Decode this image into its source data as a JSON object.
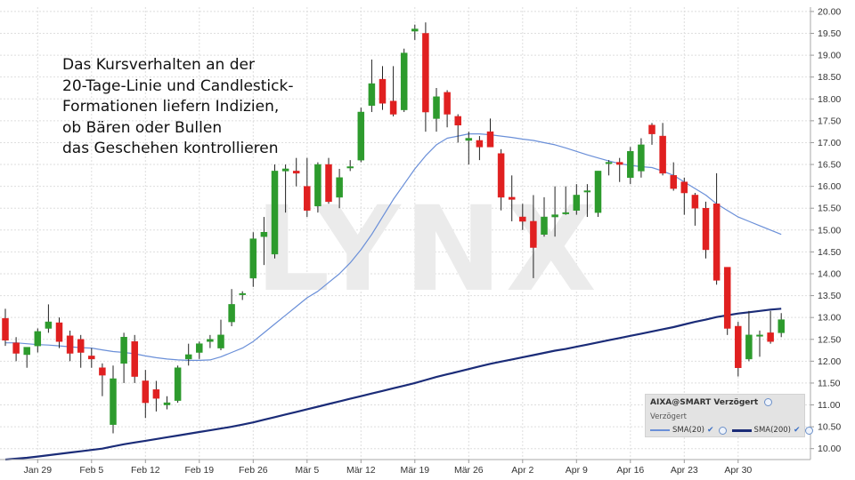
{
  "annotation": {
    "lines": [
      "Das Kursverhalten an der",
      "20-Tage-Linie und Candlestick-",
      "Formationen liefern Indizien,",
      "ob Bären oder Bullen",
      "das Geschehen kontrollieren"
    ]
  },
  "watermark": "LYNX",
  "legend": {
    "title": "AIXA@SMART Verzögert",
    "subtitle": "Verzögert",
    "items": [
      {
        "label": "SMA(20)",
        "color": "#6a8fd8"
      },
      {
        "label": "SMA(200)",
        "color": "#1b2c78"
      }
    ]
  },
  "chart_data": {
    "type": "candlestick",
    "y_axis": {
      "position": "right",
      "min": 9.75,
      "max": 20.1,
      "ticks": [
        "20.00",
        "19.50",
        "19.00",
        "18.50",
        "18.00",
        "17.50",
        "17.00",
        "16.50",
        "16.00",
        "15.50",
        "15.00",
        "14.50",
        "14.00",
        "13.50",
        "13.00",
        "12.50",
        "12.00",
        "11.50",
        "11.00",
        "10.50",
        "10.00"
      ]
    },
    "x_axis": {
      "labels": [
        {
          "text": "Jan 29",
          "index": 3
        },
        {
          "text": "Feb 5",
          "index": 8
        },
        {
          "text": "Feb 12",
          "index": 13
        },
        {
          "text": "Feb 19",
          "index": 18
        },
        {
          "text": "Feb 26",
          "index": 23
        },
        {
          "text": "Mär 5",
          "index": 28
        },
        {
          "text": "Mär 12",
          "index": 33
        },
        {
          "text": "Mär 19",
          "index": 38
        },
        {
          "text": "Mär 26",
          "index": 43
        },
        {
          "text": "Apr 2",
          "index": 48
        },
        {
          "text": "Apr 9",
          "index": 53
        },
        {
          "text": "Apr 16",
          "index": 58
        },
        {
          "text": "Apr 23",
          "index": 63
        },
        {
          "text": "Apr 30",
          "index": 68
        }
      ]
    },
    "up_color": "#2d9b2d",
    "down_color": "#e02020",
    "grid": true,
    "candles": [
      {
        "o": 12.98,
        "h": 13.2,
        "l": 12.35,
        "c": 12.48
      },
      {
        "o": 12.42,
        "h": 12.55,
        "l": 12.0,
        "c": 12.18
      },
      {
        "o": 12.15,
        "h": 12.3,
        "l": 11.85,
        "c": 12.32
      },
      {
        "o": 12.35,
        "h": 12.75,
        "l": 12.2,
        "c": 12.68
      },
      {
        "o": 12.75,
        "h": 13.3,
        "l": 12.65,
        "c": 12.9
      },
      {
        "o": 12.88,
        "h": 13.0,
        "l": 12.3,
        "c": 12.45
      },
      {
        "o": 12.58,
        "h": 12.7,
        "l": 12.0,
        "c": 12.18
      },
      {
        "o": 12.5,
        "h": 12.6,
        "l": 11.85,
        "c": 12.2
      },
      {
        "o": 12.12,
        "h": 12.3,
        "l": 11.85,
        "c": 12.05
      },
      {
        "o": 11.85,
        "h": 11.95,
        "l": 11.2,
        "c": 11.68
      },
      {
        "o": 10.55,
        "h": 11.9,
        "l": 10.35,
        "c": 11.6
      },
      {
        "o": 11.95,
        "h": 12.65,
        "l": 11.5,
        "c": 12.55
      },
      {
        "o": 12.45,
        "h": 12.6,
        "l": 11.5,
        "c": 11.65
      },
      {
        "o": 11.55,
        "h": 11.8,
        "l": 10.7,
        "c": 11.05
      },
      {
        "o": 11.35,
        "h": 11.55,
        "l": 10.85,
        "c": 11.15
      },
      {
        "o": 11.0,
        "h": 11.2,
        "l": 10.9,
        "c": 11.05
      },
      {
        "o": 11.1,
        "h": 11.9,
        "l": 11.05,
        "c": 11.85
      },
      {
        "o": 12.05,
        "h": 12.4,
        "l": 11.9,
        "c": 12.15
      },
      {
        "o": 12.2,
        "h": 12.45,
        "l": 12.05,
        "c": 12.4
      },
      {
        "o": 12.45,
        "h": 12.6,
        "l": 12.3,
        "c": 12.5
      },
      {
        "o": 12.3,
        "h": 12.95,
        "l": 12.25,
        "c": 12.6
      },
      {
        "o": 12.9,
        "h": 13.65,
        "l": 12.8,
        "c": 13.3
      },
      {
        "o": 13.55,
        "h": 13.6,
        "l": 13.4,
        "c": 13.55
      },
      {
        "o": 13.9,
        "h": 14.95,
        "l": 13.7,
        "c": 14.8
      },
      {
        "o": 14.85,
        "h": 15.3,
        "l": 14.2,
        "c": 14.95
      },
      {
        "o": 14.45,
        "h": 16.5,
        "l": 14.35,
        "c": 16.35
      },
      {
        "o": 16.35,
        "h": 16.5,
        "l": 15.4,
        "c": 16.4
      },
      {
        "o": 16.35,
        "h": 16.65,
        "l": 16.0,
        "c": 16.3
      },
      {
        "o": 16.0,
        "h": 16.65,
        "l": 15.3,
        "c": 15.45
      },
      {
        "o": 15.55,
        "h": 16.55,
        "l": 15.4,
        "c": 16.5
      },
      {
        "o": 16.5,
        "h": 16.65,
        "l": 15.6,
        "c": 15.65
      },
      {
        "o": 15.75,
        "h": 16.4,
        "l": 15.5,
        "c": 16.2
      },
      {
        "o": 16.45,
        "h": 16.6,
        "l": 16.35,
        "c": 16.45
      },
      {
        "o": 16.6,
        "h": 17.8,
        "l": 16.55,
        "c": 17.7
      },
      {
        "o": 17.85,
        "h": 18.9,
        "l": 17.7,
        "c": 18.35
      },
      {
        "o": 18.45,
        "h": 18.75,
        "l": 17.75,
        "c": 17.9
      },
      {
        "o": 17.95,
        "h": 18.75,
        "l": 17.6,
        "c": 17.65
      },
      {
        "o": 17.75,
        "h": 19.15,
        "l": 17.7,
        "c": 19.05
      },
      {
        "o": 19.55,
        "h": 19.7,
        "l": 19.35,
        "c": 19.6
      },
      {
        "o": 19.5,
        "h": 19.75,
        "l": 17.25,
        "c": 17.7
      },
      {
        "o": 17.55,
        "h": 18.25,
        "l": 17.25,
        "c": 18.05
      },
      {
        "o": 18.15,
        "h": 18.2,
        "l": 17.35,
        "c": 17.65
      },
      {
        "o": 17.6,
        "h": 17.65,
        "l": 17.0,
        "c": 17.4
      },
      {
        "o": 17.05,
        "h": 17.25,
        "l": 16.5,
        "c": 17.1
      },
      {
        "o": 17.05,
        "h": 17.15,
        "l": 16.6,
        "c": 16.9
      },
      {
        "o": 17.25,
        "h": 17.55,
        "l": 16.9,
        "c": 16.9
      },
      {
        "o": 16.75,
        "h": 16.85,
        "l": 15.45,
        "c": 15.75
      },
      {
        "o": 15.75,
        "h": 16.25,
        "l": 15.2,
        "c": 15.7
      },
      {
        "o": 15.3,
        "h": 15.6,
        "l": 15.0,
        "c": 15.2
      },
      {
        "o": 15.2,
        "h": 15.8,
        "l": 13.9,
        "c": 14.6
      },
      {
        "o": 14.9,
        "h": 15.75,
        "l": 14.85,
        "c": 15.3
      },
      {
        "o": 15.3,
        "h": 16.0,
        "l": 14.85,
        "c": 15.35
      },
      {
        "o": 15.4,
        "h": 16.0,
        "l": 15.35,
        "c": 15.4
      },
      {
        "o": 15.45,
        "h": 16.05,
        "l": 15.35,
        "c": 15.8
      },
      {
        "o": 15.9,
        "h": 16.05,
        "l": 15.3,
        "c": 15.9
      },
      {
        "o": 15.4,
        "h": 16.35,
        "l": 15.3,
        "c": 16.35
      },
      {
        "o": 16.55,
        "h": 16.6,
        "l": 16.25,
        "c": 16.55
      },
      {
        "o": 16.55,
        "h": 16.65,
        "l": 16.1,
        "c": 16.5
      },
      {
        "o": 16.2,
        "h": 16.9,
        "l": 16.05,
        "c": 16.8
      },
      {
        "o": 16.35,
        "h": 17.1,
        "l": 16.2,
        "c": 16.95
      },
      {
        "o": 17.4,
        "h": 17.45,
        "l": 16.95,
        "c": 17.2
      },
      {
        "o": 17.15,
        "h": 17.45,
        "l": 16.25,
        "c": 16.3
      },
      {
        "o": 16.25,
        "h": 16.55,
        "l": 15.9,
        "c": 15.95
      },
      {
        "o": 16.1,
        "h": 16.2,
        "l": 15.35,
        "c": 15.85
      },
      {
        "o": 15.8,
        "h": 15.85,
        "l": 15.1,
        "c": 15.5
      },
      {
        "o": 15.5,
        "h": 15.65,
        "l": 14.35,
        "c": 14.55
      },
      {
        "o": 15.6,
        "h": 16.3,
        "l": 13.75,
        "c": 13.85
      },
      {
        "o": 14.15,
        "h": 14.15,
        "l": 12.6,
        "c": 12.75
      },
      {
        "o": 12.8,
        "h": 12.9,
        "l": 11.65,
        "c": 11.85
      },
      {
        "o": 12.05,
        "h": 13.15,
        "l": 12.0,
        "c": 12.6
      },
      {
        "o": 12.6,
        "h": 12.7,
        "l": 12.1,
        "c": 12.6
      },
      {
        "o": 12.65,
        "h": 13.15,
        "l": 12.4,
        "c": 12.45
      },
      {
        "o": 12.65,
        "h": 13.1,
        "l": 12.55,
        "c": 12.95
      }
    ],
    "sma20": [
      12.42,
      12.42,
      12.4,
      12.38,
      12.37,
      12.35,
      12.33,
      12.31,
      12.3,
      12.26,
      12.22,
      12.2,
      12.17,
      12.12,
      12.08,
      12.05,
      12.03,
      12.02,
      12.02,
      12.03,
      12.1,
      12.2,
      12.3,
      12.45,
      12.65,
      12.85,
      13.05,
      13.25,
      13.45,
      13.6,
      13.8,
      14.0,
      14.25,
      14.55,
      14.9,
      15.3,
      15.7,
      16.05,
      16.4,
      16.7,
      16.95,
      17.1,
      17.15,
      17.2,
      17.2,
      17.18,
      17.15,
      17.12,
      17.08,
      17.05,
      17.0,
      16.95,
      16.88,
      16.8,
      16.72,
      16.65,
      16.58,
      16.52,
      16.48,
      16.45,
      16.43,
      16.35,
      16.25,
      16.1,
      15.95,
      15.8,
      15.6,
      15.45,
      15.3,
      15.2,
      15.1,
      15.0,
      14.9
    ],
    "sma200": [
      9.75,
      9.77,
      9.79,
      9.82,
      9.85,
      9.88,
      9.91,
      9.94,
      9.97,
      10.0,
      10.05,
      10.1,
      10.14,
      10.18,
      10.22,
      10.26,
      10.3,
      10.34,
      10.38,
      10.42,
      10.46,
      10.5,
      10.55,
      10.6,
      10.66,
      10.72,
      10.78,
      10.84,
      10.9,
      10.96,
      11.02,
      11.08,
      11.14,
      11.2,
      11.26,
      11.32,
      11.38,
      11.44,
      11.5,
      11.57,
      11.64,
      11.7,
      11.76,
      11.82,
      11.88,
      11.94,
      11.99,
      12.04,
      12.09,
      12.14,
      12.19,
      12.24,
      12.28,
      12.33,
      12.38,
      12.43,
      12.48,
      12.53,
      12.58,
      12.63,
      12.68,
      12.73,
      12.78,
      12.84,
      12.9,
      12.95,
      13.01,
      13.05,
      13.09,
      13.12,
      13.15,
      13.18,
      13.2
    ]
  }
}
